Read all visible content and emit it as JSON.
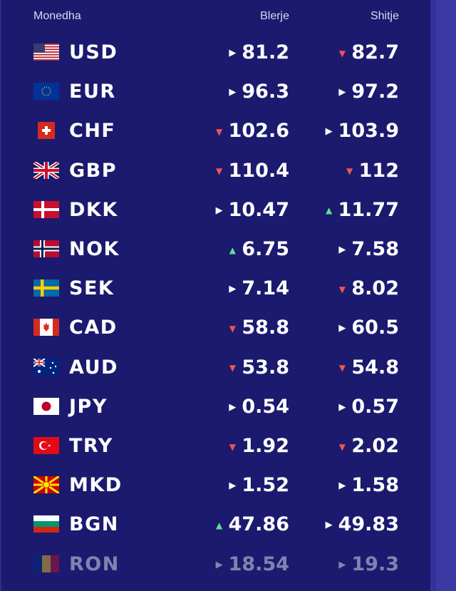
{
  "header": {
    "currency_label": "Monedha",
    "buy_label": "Blerje",
    "sell_label": "Shitje"
  },
  "colors": {
    "panel": "#1b1a6f",
    "up": "#5de28a",
    "down": "#f05454",
    "flat": "#ffffff"
  },
  "rows": [
    {
      "code": "USD",
      "flag": "usa-flag",
      "buy": "81.2",
      "buy_trend": "flat",
      "sell": "82.7",
      "sell_trend": "down"
    },
    {
      "code": "EUR",
      "flag": "eu-flag",
      "buy": "96.3",
      "buy_trend": "flat",
      "sell": "97.2",
      "sell_trend": "flat"
    },
    {
      "code": "CHF",
      "flag": "switzerland-flag",
      "buy": "102.6",
      "buy_trend": "down",
      "sell": "103.9",
      "sell_trend": "flat"
    },
    {
      "code": "GBP",
      "flag": "uk-flag",
      "buy": "110.4",
      "buy_trend": "down",
      "sell": "112",
      "sell_trend": "down"
    },
    {
      "code": "DKK",
      "flag": "denmark-flag",
      "buy": "10.47",
      "buy_trend": "flat",
      "sell": "11.77",
      "sell_trend": "up"
    },
    {
      "code": "NOK",
      "flag": "norway-flag",
      "buy": "6.75",
      "buy_trend": "up",
      "sell": "7.58",
      "sell_trend": "flat"
    },
    {
      "code": "SEK",
      "flag": "sweden-flag",
      "buy": "7.14",
      "buy_trend": "flat",
      "sell": "8.02",
      "sell_trend": "down"
    },
    {
      "code": "CAD",
      "flag": "canada-flag",
      "buy": "58.8",
      "buy_trend": "down",
      "sell": "60.5",
      "sell_trend": "flat"
    },
    {
      "code": "AUD",
      "flag": "australia-flag",
      "buy": "53.8",
      "buy_trend": "down",
      "sell": "54.8",
      "sell_trend": "down"
    },
    {
      "code": "JPY",
      "flag": "japan-flag",
      "buy": "0.54",
      "buy_trend": "flat",
      "sell": "0.57",
      "sell_trend": "flat"
    },
    {
      "code": "TRY",
      "flag": "turkey-flag",
      "buy": "1.92",
      "buy_trend": "down",
      "sell": "2.02",
      "sell_trend": "down"
    },
    {
      "code": "MKD",
      "flag": "north-macedonia-flag",
      "buy": "1.52",
      "buy_trend": "flat",
      "sell": "1.58",
      "sell_trend": "flat"
    },
    {
      "code": "BGN",
      "flag": "bulgaria-flag",
      "buy": "47.86",
      "buy_trend": "up",
      "sell": "49.83",
      "sell_trend": "flat"
    },
    {
      "code": "RON",
      "flag": "romania-flag",
      "buy": "18.54",
      "buy_trend": "flat",
      "sell": "19.3",
      "sell_trend": "flat"
    }
  ]
}
